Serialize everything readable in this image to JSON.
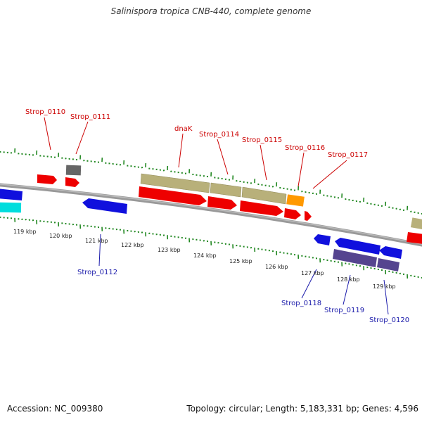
{
  "title": "Salinispora tropica CNB-440, complete genome",
  "footer": {
    "accession": "Accession: NC_009380",
    "stats": "Topology: circular; Length: 5,183,331 bp; Genes: 4,596"
  },
  "scale_labels": [
    "119 kbp",
    "120 kbp",
    "121 kbp",
    "122 kbp",
    "123 kbp",
    "124 kbp",
    "125 kbp",
    "126 kbp",
    "127 kbp",
    "128 kbp",
    "129 kbp"
  ],
  "gene_labels": [
    {
      "text": "Strop_0110",
      "strand": "forward"
    },
    {
      "text": "Strop_0111",
      "strand": "forward"
    },
    {
      "text": "dnaK",
      "strand": "forward"
    },
    {
      "text": "Strop_0114",
      "strand": "forward"
    },
    {
      "text": "Strop_0115",
      "strand": "forward"
    },
    {
      "text": "Strop_0116",
      "strand": "forward"
    },
    {
      "text": "Strop_0117",
      "strand": "forward"
    },
    {
      "text": "Strop_0112",
      "strand": "reverse"
    },
    {
      "text": "Strop_0118",
      "strand": "reverse"
    },
    {
      "text": "Strop_0119",
      "strand": "reverse"
    },
    {
      "text": "Strop_0120",
      "strand": "reverse"
    }
  ],
  "colors": {
    "forward_label": "#cc0000",
    "reverse_label": "#1a1aaa",
    "cds_forward": "#ee0000",
    "cds_reverse": "#1010dd",
    "gene_bar": "#b8b07a",
    "trna": "#666666",
    "orange_feature": "#ff9900",
    "cyan_feature": "#00dddd",
    "purple_feature": "#55448f",
    "backbone": "#888888",
    "ticks": "#228822"
  }
}
